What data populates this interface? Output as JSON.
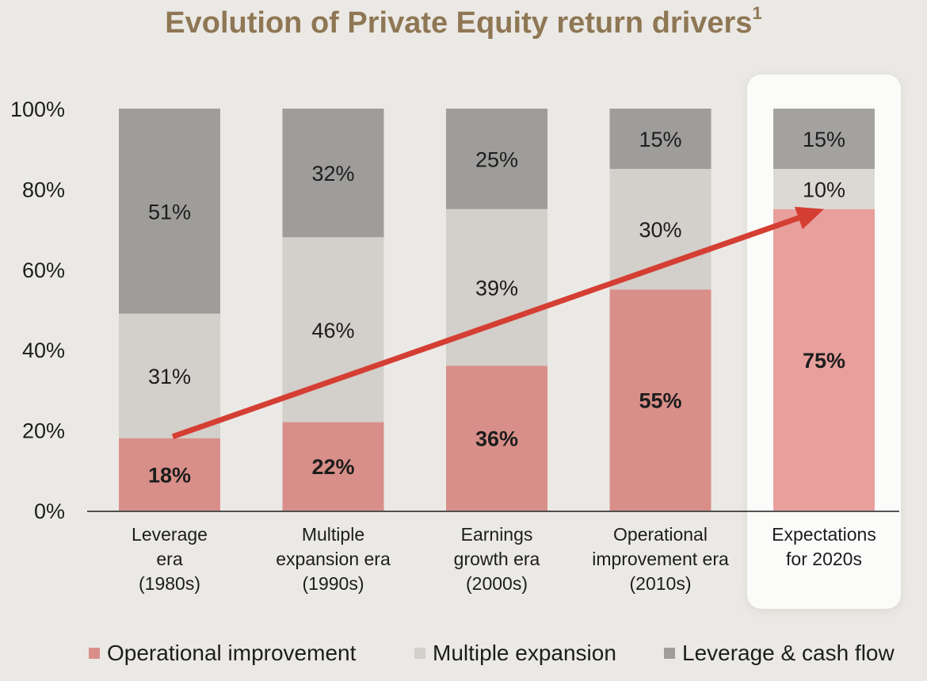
{
  "chart_data": {
    "type": "bar",
    "stacked": true,
    "title": "Evolution of Private Equity return drivers",
    "title_footnote": "1",
    "categories": [
      [
        "Leverage",
        "era",
        "(1980s)"
      ],
      [
        "Multiple",
        "expansion era",
        "(1990s)"
      ],
      [
        "Earnings",
        "growth era",
        "(2000s)"
      ],
      [
        "Operational",
        "improvement era",
        "(2010s)"
      ],
      [
        "Expectations",
        "for 2020s"
      ]
    ],
    "series": [
      {
        "name": "Operational improvement",
        "values": [
          18,
          22,
          36,
          55,
          75
        ],
        "labels": [
          "18%",
          "22%",
          "36%",
          "55%",
          "75%"
        ],
        "color": "#d98f89",
        "highlight_color": "#e7a09c",
        "bold": true
      },
      {
        "name": "Multiple expansion",
        "values": [
          31,
          46,
          39,
          30,
          10
        ],
        "labels": [
          "31%",
          "46%",
          "39%",
          "30%",
          "10%"
        ],
        "color": "#d3cfca",
        "highlight_color": "#dcd9d5",
        "bold": false
      },
      {
        "name": "Leverage & cash flow",
        "values": [
          51,
          32,
          25,
          15,
          15
        ],
        "labels": [
          "51%",
          "32%",
          "25%",
          "15%",
          "15%"
        ],
        "color": "#9e9d9b",
        "highlight_color": "#a3a2a0",
        "bold": false
      }
    ],
    "yticks": [
      "0%",
      "20%",
      "40%",
      "60%",
      "80%",
      "100%"
    ],
    "ylim": [
      0,
      100
    ],
    "highlighted_category_index": 4,
    "trend_arrow": {
      "from_category": 0,
      "from_value": 18,
      "to_category": 4,
      "to_value": 75,
      "color": "#d53e33"
    },
    "legend_position": "bottom"
  }
}
